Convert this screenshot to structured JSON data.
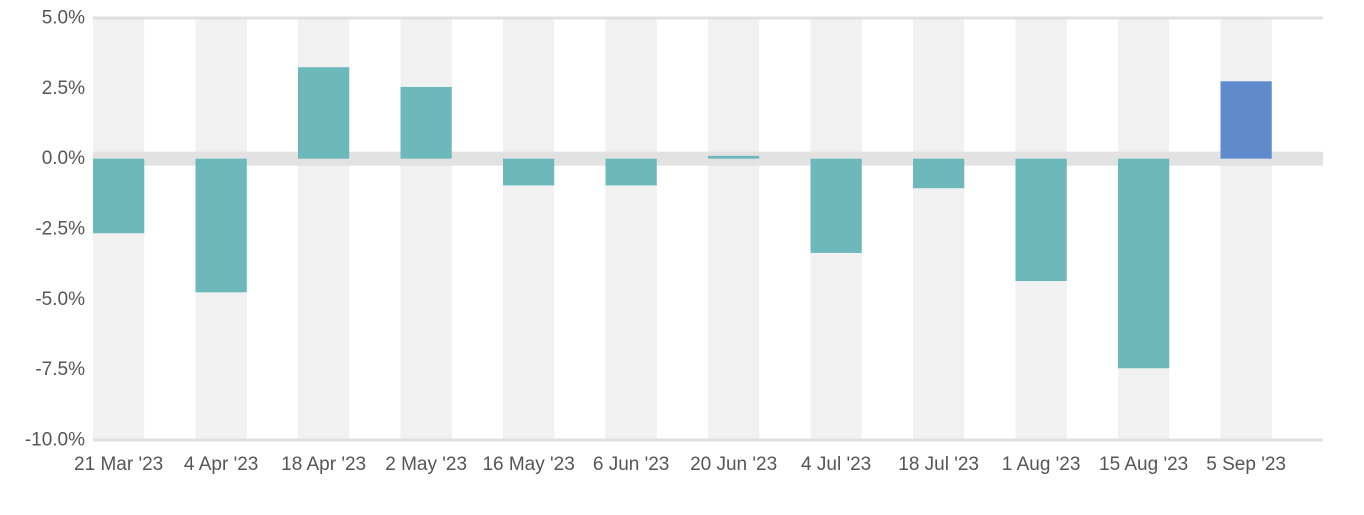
{
  "chart_data": {
    "type": "bar",
    "title": "",
    "xlabel": "",
    "ylabel": "",
    "categories": [
      "21 Mar '23",
      "4 Apr '23",
      "18 Apr '23",
      "2 May '23",
      "16 May '23",
      "6 Jun '23",
      "20 Jun '23",
      "4 Jul '23",
      "18 Jul '23",
      "1 Aug '23",
      "15 Aug '23",
      "5 Sep '23"
    ],
    "values": [
      -2.65,
      -4.75,
      3.25,
      2.55,
      -0.95,
      -0.95,
      0.1,
      -3.35,
      -1.05,
      -4.35,
      -7.45,
      2.75
    ],
    "ylim": [
      -10,
      5
    ],
    "yticks": [
      5,
      2.5,
      0,
      -2.5,
      -5,
      -7.5,
      -10
    ],
    "ytick_labels": [
      "5.0%",
      "2.5%",
      "0.0%",
      "-2.5%",
      "-5.0%",
      "-7.5%",
      "-10.0%"
    ],
    "colors": {
      "bar": "#6db8ba",
      "highlight_bar": "#5f8bcc",
      "band": "#f1f1f1",
      "zero_line": "#e2e2e2",
      "axis_line": "#e0e0e0"
    },
    "highlight_index": 11,
    "grid": false,
    "legend": "none"
  }
}
